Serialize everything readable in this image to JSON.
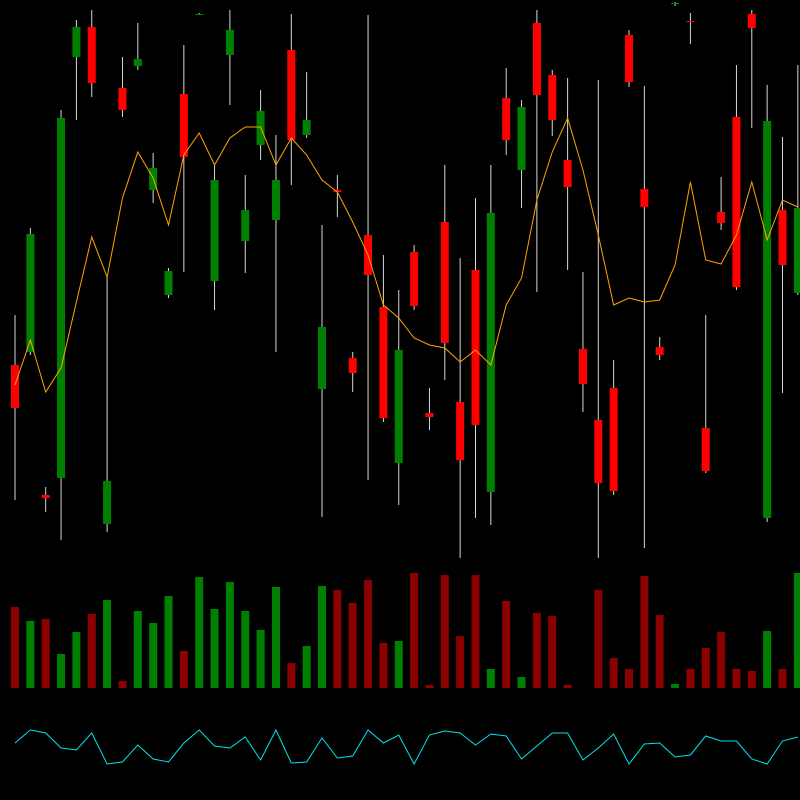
{
  "chart_data": [
    {
      "type": "candlestick",
      "open": [
        195,
        208,
        65,
        82,
        503,
        533,
        36,
        472,
        494,
        370,
        265,
        466,
        545,
        279,
        505,
        319,
        415,
        340,
        510,
        425,
        171,
        370,
        202,
        325,
        253,
        97,
        308,
        147,
        338,
        158,
        290,
        68,
        462,
        390,
        537,
        485,
        400,
        211,
        140,
        172,
        525,
        371,
        213,
        556,
        539,
        132,
        348,
        443,
        546,
        42,
        350,
        267
      ],
      "high": [
        245,
        332,
        73,
        450,
        540,
        550,
        285,
        503,
        537,
        407,
        292,
        515,
        547,
        395,
        550,
        385,
        470,
        425,
        546,
        488,
        335,
        385,
        208,
        545,
        305,
        270,
        315,
        172,
        395,
        302,
        362,
        395,
        492,
        460,
        550,
        490,
        482,
        288,
        480,
        200,
        530,
        474,
        223,
        558,
        547,
        245,
        383,
        495,
        550,
        475,
        423,
        495
      ],
      "low": [
        60,
        205,
        48,
        20,
        440,
        463,
        28,
        443,
        490,
        357,
        262,
        288,
        545,
        250,
        455,
        287,
        400,
        208,
        375,
        422,
        43,
        343,
        168,
        80,
        138,
        55,
        250,
        130,
        180,
        2,
        42,
        35,
        405,
        352,
        268,
        424,
        290,
        148,
        2,
        65,
        473,
        12,
        200,
        554,
        516,
        87,
        330,
        270,
        432,
        38,
        167,
        265
      ],
      "close": [
        152,
        326,
        62,
        442,
        533,
        477,
        79,
        450,
        501,
        392,
        289,
        403,
        546,
        380,
        530,
        350,
        449,
        380,
        420,
        440,
        233,
        368,
        187,
        285,
        142,
        210,
        254,
        143,
        217,
        100,
        135,
        347,
        420,
        453,
        465,
        440,
        373,
        176,
        77,
        69,
        478,
        353,
        205,
        557,
        538,
        89,
        337,
        273,
        532,
        439,
        295,
        352
      ],
      "up_color": "#008000",
      "down_color": "#ff0000",
      "wick_color": "#d8d8d8",
      "ylim": [
        0,
        560
      ],
      "ma": {
        "color": "#ffa500",
        "values": [
          175,
          220,
          168,
          192,
          258,
          323,
          283,
          362,
          408,
          382,
          335,
          405,
          427,
          395,
          422,
          433,
          433,
          395,
          422,
          405,
          380,
          368,
          338,
          305,
          255,
          242,
          222,
          215,
          212,
          198,
          210,
          195,
          255,
          282,
          360,
          408,
          442,
          390,
          325,
          255,
          262,
          258,
          260,
          295,
          378,
          300,
          296,
          325,
          378,
          320,
          360,
          353
        ]
      }
    },
    {
      "type": "bar",
      "values": [
        81,
        67,
        69,
        34,
        56,
        74,
        88,
        7,
        77,
        65,
        92,
        37,
        111,
        79,
        106,
        77,
        58,
        101,
        25,
        42,
        102,
        98,
        85,
        108,
        45,
        47,
        115,
        3,
        113,
        52,
        113,
        19,
        87,
        11,
        75,
        72,
        3,
        0,
        98,
        30,
        19,
        112,
        73,
        4,
        19,
        40,
        56,
        19,
        17,
        57,
        19,
        115
      ],
      "up_color": "#008000",
      "down_color": "#8b0000",
      "ylim": [
        0,
        130
      ]
    },
    {
      "type": "line",
      "values": [
        57,
        70,
        67,
        52,
        50,
        67,
        36,
        38,
        55,
        41,
        38,
        57,
        70,
        54,
        52,
        63,
        40,
        70,
        37,
        38,
        62,
        42,
        44,
        70,
        57,
        65,
        36,
        65,
        69,
        67,
        55,
        66,
        64,
        41,
        54,
        67,
        67,
        40,
        52,
        66,
        36,
        56,
        57,
        43,
        45,
        64,
        59,
        59,
        41,
        36,
        59,
        63
      ],
      "color": "#00e5ee",
      "ylim": [
        0,
        100
      ]
    }
  ]
}
